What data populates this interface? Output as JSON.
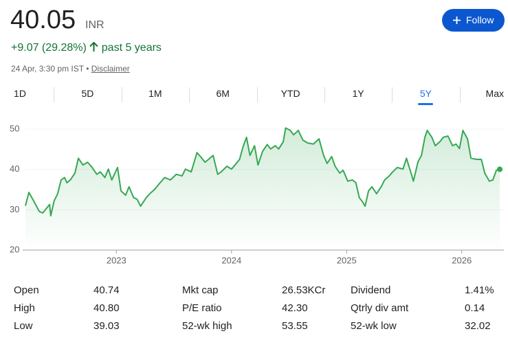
{
  "header": {
    "price": "40.05",
    "currency": "INR",
    "change": "+9.07 (29.28%)",
    "period": "past 5 years",
    "timestamp": "24 Apr, 3:30 pm IST",
    "separator": "•",
    "disclaimer": "Disclaimer",
    "follow": "Follow"
  },
  "ranges": [
    "1D",
    "5D",
    "1M",
    "6M",
    "YTD",
    "1Y",
    "5Y",
    "Max"
  ],
  "selected_range": "5Y",
  "stats": [
    {
      "label": "Open",
      "value": "40.74"
    },
    {
      "label": "High",
      "value": "40.80"
    },
    {
      "label": "Low",
      "value": "39.03"
    },
    {
      "label": "Mkt cap",
      "value": "26.53KCr"
    },
    {
      "label": "P/E ratio",
      "value": "42.30"
    },
    {
      "label": "52-wk high",
      "value": "53.55"
    },
    {
      "label": "Dividend",
      "value": "1.41%"
    },
    {
      "label": "Qtrly div amt",
      "value": "0.14"
    },
    {
      "label": "52-wk low",
      "value": "32.02"
    }
  ],
  "chart_data": {
    "type": "line",
    "color": "#34a853",
    "x": [
      2022.21,
      2022.24,
      2022.28,
      2022.33,
      2022.36,
      2022.4,
      2022.42,
      2022.43,
      2022.46,
      2022.49,
      2022.52,
      2022.55,
      2022.57,
      2022.6,
      2022.64,
      2022.67,
      2022.71,
      2022.75,
      2022.79,
      2022.83,
      2022.86,
      2022.9,
      2022.93,
      2022.96,
      2023.01,
      2023.04,
      2023.08,
      2023.11,
      2023.15,
      2023.18,
      2023.21,
      2023.26,
      2023.29,
      2023.33,
      2023.38,
      2023.42,
      2023.47,
      2023.52,
      2023.57,
      2023.6,
      2023.65,
      2023.7,
      2023.73,
      2023.77,
      2023.8,
      2023.84,
      2023.88,
      2023.91,
      2023.96,
      2024.0,
      2024.03,
      2024.07,
      2024.1,
      2024.13,
      2024.16,
      2024.2,
      2024.23,
      2024.27,
      2024.31,
      2024.34,
      2024.38,
      2024.41,
      2024.45,
      2024.47,
      2024.51,
      2024.54,
      2024.58,
      2024.62,
      2024.66,
      2024.71,
      2024.76,
      2024.8,
      2024.83,
      2024.87,
      2024.9,
      2024.94,
      2024.97,
      2025.01,
      2025.05,
      2025.08,
      2025.11,
      2025.14,
      2025.16,
      2025.19,
      2025.22,
      2025.26,
      2025.3,
      2025.33,
      2025.37,
      2025.4,
      2025.44,
      2025.49,
      2025.52,
      2025.56,
      2025.58,
      2025.62,
      2025.65,
      2025.68,
      2025.7,
      2025.74,
      2025.77,
      2025.81,
      2025.84,
      2025.88,
      2025.92,
      2025.95,
      2025.98,
      2026.01,
      2026.05,
      2026.08,
      2026.13,
      2026.17,
      2026.2,
      2026.24,
      2026.27,
      2026.3,
      2026.33
    ],
    "values": [
      31,
      34.3,
      32.3,
      29.6,
      29.2,
      30.6,
      31.3,
      28.5,
      32.3,
      34,
      37.4,
      38,
      36.7,
      37.4,
      39.1,
      42.8,
      41.1,
      41.8,
      40.5,
      38.8,
      39.4,
      38,
      40.1,
      37.4,
      40.5,
      34.7,
      33.6,
      35.7,
      33,
      32.6,
      30.9,
      33,
      34,
      35,
      36.7,
      38,
      37.4,
      38.8,
      38.4,
      40.1,
      39.4,
      44.2,
      43.2,
      41.8,
      42.5,
      43.5,
      38.8,
      39.4,
      40.8,
      40.1,
      41.1,
      42.5,
      45.6,
      48,
      43.5,
      45.9,
      41.1,
      44.5,
      46.2,
      45.1,
      45.9,
      45.1,
      46.9,
      50.3,
      49.7,
      48.6,
      49.7,
      47.3,
      46.6,
      46.3,
      47.6,
      43.5,
      41.5,
      43.2,
      40.8,
      39.1,
      39.8,
      37.1,
      37.4,
      36.7,
      33,
      31.9,
      30.9,
      34.7,
      35.7,
      34,
      35.7,
      37.4,
      38.4,
      39.4,
      40.5,
      40.1,
      42.8,
      39.1,
      37.1,
      41.9,
      43.5,
      48,
      49.7,
      48,
      45.9,
      46.9,
      48,
      48.3,
      45.9,
      46.3,
      45.2,
      49.7,
      47.6,
      42.8,
      42.5,
      42.5,
      39.1,
      37.1,
      37.4,
      39.8,
      40.05
    ],
    "xlim": [
      2022.21,
      2026.33
    ],
    "ylim": [
      20,
      52
    ],
    "xticks": [
      2023,
      2024,
      2025,
      2026
    ],
    "yticks": [
      20,
      30,
      40,
      50
    ],
    "grid": true
  }
}
